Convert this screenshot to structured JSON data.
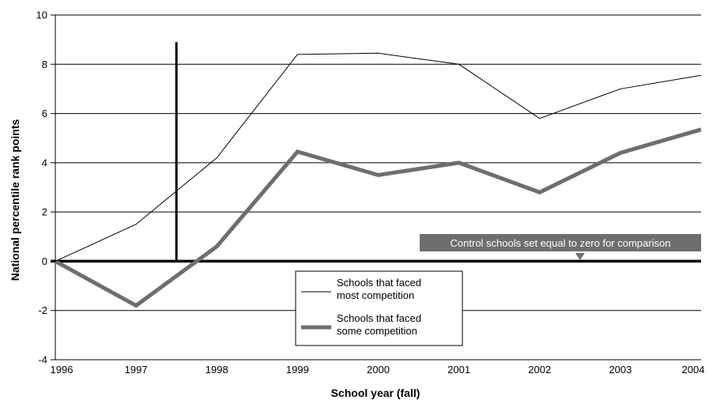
{
  "chart_data": {
    "type": "line",
    "xlabel": "School year (fall)",
    "ylabel": "National percentile rank points",
    "x": [
      1996,
      1997,
      1998,
      1999,
      2000,
      2001,
      2002,
      2003,
      2004
    ],
    "ylim": [
      -4,
      10
    ],
    "yticks": [
      -4,
      -2,
      0,
      2,
      4,
      6,
      8,
      10
    ],
    "grid": "horizontal",
    "series": [
      {
        "name": "Schools that faced most competition",
        "legend_lines": [
          "Schools that faced",
          "most competition"
        ],
        "values": [
          0,
          1.5,
          4.2,
          8.4,
          8.45,
          8.0,
          5.8,
          7.0,
          7.55
        ],
        "color": "#000000",
        "style": "thin"
      },
      {
        "name": "Schools that faced some competition",
        "legend_lines": [
          "Schools that faced",
          "some competition"
        ],
        "values": [
          0,
          -1.8,
          0.6,
          4.45,
          3.5,
          4.0,
          2.8,
          4.4,
          5.35
        ],
        "color": "#6e6e6e",
        "style": "thick"
      }
    ],
    "vertical_marker": {
      "x": 1997.5,
      "y_top": 8.9
    },
    "annotation": {
      "text": "Control schools set equal to zero for comparison",
      "pointer_x": 2002.5,
      "color": "#6e6e6e"
    },
    "legend_position": "bottom-center"
  }
}
